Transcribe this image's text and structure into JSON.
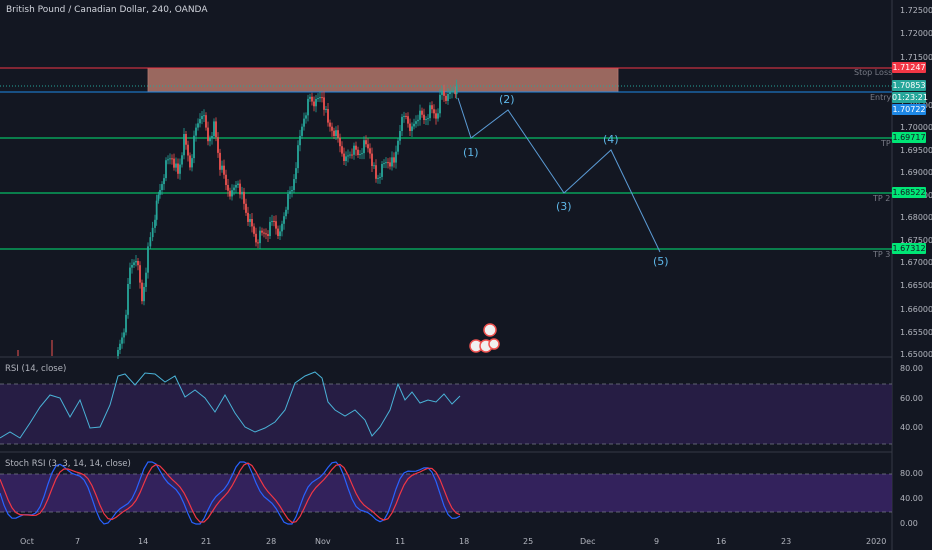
{
  "header": {
    "title": "British Pound / Canadian Dollar, 240, OANDA"
  },
  "price_axis": {
    "ticks": [
      "1.72500",
      "1.72000",
      "1.71500",
      "1.70500",
      "1.70000",
      "1.69500",
      "1.69000",
      "1.68500",
      "1.68000",
      "1.67500",
      "1.67000",
      "1.66500",
      "1.66000",
      "1.65500",
      "1.65000"
    ]
  },
  "levels": {
    "stop_loss": {
      "label": "Stop Loss",
      "price_tag": "1.71247",
      "color": "#f23645"
    },
    "current": {
      "price_tag": "1.70853",
      "color": "#26a69a"
    },
    "entry": {
      "label": "Entry",
      "countdown": "01:23:21",
      "price_tag": "1.70722",
      "color": "#1e88e5"
    },
    "tp1": {
      "label": "TP",
      "price_tag": "1.69717",
      "color": "#00e676"
    },
    "tp2": {
      "label": "TP 2",
      "price_tag": "1.68522",
      "color": "#00e676"
    },
    "tp3": {
      "label": "TP 3",
      "price_tag": "1.67312",
      "color": "#00e676"
    }
  },
  "waves": [
    "(1)",
    "(2)",
    "(3)",
    "(4)",
    "(5)"
  ],
  "rsi": {
    "title": "RSI (14, close)",
    "ticks": [
      "80.00",
      "60.00",
      "40.00"
    ]
  },
  "stoch": {
    "title": "Stoch RSI (3, 3, 14, 14, close)",
    "ticks": [
      "80.00",
      "40.00",
      "0.00"
    ]
  },
  "time_axis": {
    "ticks": [
      "Oct",
      "7",
      "14",
      "21",
      "28",
      "Nov",
      "11",
      "18",
      "25",
      "Dec",
      "9",
      "16",
      "23",
      "2020"
    ]
  },
  "colors": {
    "background": "#131722",
    "up": "#26a69a",
    "down": "#ef5350",
    "zone": "#b2776a",
    "wave_line": "#5b9bd5",
    "rsi_band": "#2a1f4a",
    "stoch_band": "#3a2466"
  }
}
